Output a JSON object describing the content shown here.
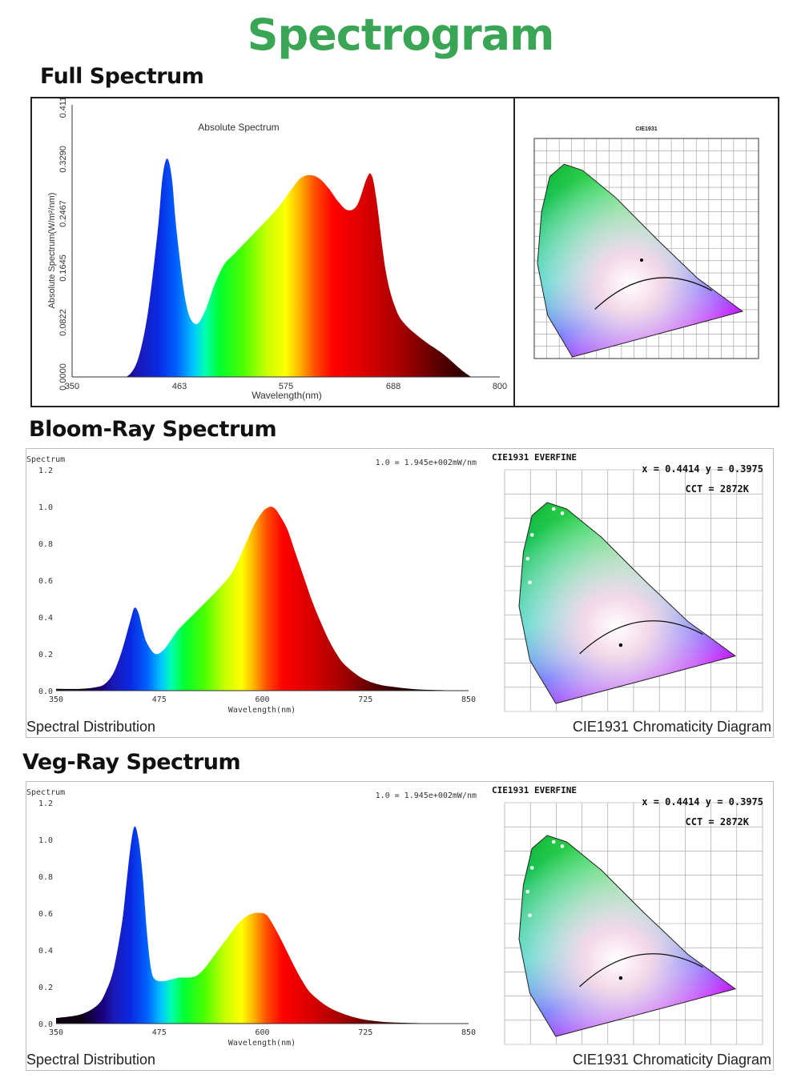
{
  "page_title": "Spectrogram",
  "sections": [
    {
      "heading": "Full Spectrum"
    },
    {
      "heading": "Bloom-Ray Spectrum",
      "left_caption": "Spectral Distribution",
      "right_caption": "CIE1931 Chromaticity Diagram"
    },
    {
      "heading": "Veg-Ray Spectrum",
      "left_caption": "Spectral Distribution",
      "right_caption": "CIE1931 Chromaticity Diagram"
    }
  ],
  "cie_labels": {
    "header": "CIE1931   EVERFINE",
    "xy": "x = 0.4414 y = 0.3975",
    "cct": "CCT = 2872K",
    "full_title": "CIE1931"
  },
  "chart_data": [
    {
      "type": "area",
      "title": "Absolute Spectrum",
      "xlabel": "Wavelength(nm)",
      "ylabel": "Absolute Spectrum(W/m²/nm)",
      "xlim": [
        350,
        800
      ],
      "ylim": [
        0,
        0.4112
      ],
      "xticks": [
        "350",
        "463",
        "575",
        "688",
        "800"
      ],
      "yticks": [
        "0.0000",
        "0.0822",
        "0.1645",
        "0.2467",
        "0.3290",
        "0.4112"
      ],
      "x": [
        350,
        400,
        410,
        420,
        430,
        440,
        445,
        450,
        455,
        460,
        470,
        480,
        490,
        500,
        510,
        520,
        530,
        540,
        550,
        560,
        570,
        580,
        590,
        600,
        610,
        620,
        630,
        640,
        650,
        660,
        665,
        670,
        680,
        690,
        700,
        720,
        740,
        760,
        770
      ],
      "values": [
        0,
        0,
        0.003,
        0.03,
        0.1,
        0.22,
        0.3,
        0.33,
        0.3,
        0.22,
        0.11,
        0.08,
        0.1,
        0.14,
        0.17,
        0.185,
        0.2,
        0.215,
        0.23,
        0.245,
        0.262,
        0.282,
        0.3,
        0.305,
        0.3,
        0.285,
        0.265,
        0.252,
        0.26,
        0.3,
        0.305,
        0.27,
        0.16,
        0.105,
        0.08,
        0.055,
        0.035,
        0.01,
        0
      ]
    },
    {
      "type": "area",
      "title": "Bloom-Ray Spectral Distribution",
      "scale_note": "1.0 = 1.945e+002mW/nm",
      "ylabel": "Spectrum",
      "xlabel": "Wavelength(nm)",
      "xlim": [
        350,
        850
      ],
      "ylim": [
        0,
        1.2
      ],
      "xticks": [
        "350",
        "475",
        "600",
        "725",
        "850"
      ],
      "yticks": [
        "0.0",
        "0.2",
        "0.4",
        "0.6",
        "0.8",
        "1.0",
        "1.2"
      ],
      "x": [
        350,
        380,
        400,
        410,
        420,
        430,
        440,
        445,
        450,
        455,
        460,
        470,
        480,
        490,
        500,
        520,
        540,
        560,
        570,
        580,
        590,
        600,
        605,
        610,
        615,
        620,
        630,
        640,
        650,
        660,
        670,
        680,
        690,
        700,
        720,
        740,
        760,
        780,
        800,
        850
      ],
      "values": [
        0.01,
        0.01,
        0.02,
        0.04,
        0.1,
        0.22,
        0.38,
        0.45,
        0.42,
        0.33,
        0.26,
        0.2,
        0.22,
        0.28,
        0.34,
        0.43,
        0.52,
        0.62,
        0.7,
        0.8,
        0.9,
        0.97,
        0.99,
        1.0,
        0.99,
        0.96,
        0.88,
        0.75,
        0.62,
        0.49,
        0.38,
        0.28,
        0.2,
        0.14,
        0.07,
        0.035,
        0.02,
        0.01,
        0.005,
        0
      ]
    },
    {
      "type": "area",
      "title": "Veg-Ray Spectral Distribution",
      "scale_note": "1.0 = 1.945e+002mW/nm",
      "ylabel": "Spectrum",
      "xlabel": "Wavelength(nm)",
      "xlim": [
        350,
        850
      ],
      "ylim": [
        0,
        1.2
      ],
      "xticks": [
        "350",
        "475",
        "600",
        "725",
        "850"
      ],
      "yticks": [
        "0.0",
        "0.2",
        "0.4",
        "0.6",
        "0.8",
        "1.0",
        "1.2"
      ],
      "x": [
        350,
        380,
        400,
        410,
        420,
        430,
        435,
        440,
        445,
        450,
        455,
        460,
        465,
        470,
        480,
        490,
        500,
        510,
        520,
        530,
        540,
        550,
        560,
        570,
        580,
        590,
        600,
        605,
        610,
        620,
        630,
        640,
        650,
        660,
        680,
        700,
        720,
        740,
        760,
        800,
        850
      ],
      "values": [
        0.03,
        0.05,
        0.1,
        0.17,
        0.3,
        0.55,
        0.75,
        0.95,
        1.07,
        1.0,
        0.8,
        0.5,
        0.3,
        0.24,
        0.23,
        0.24,
        0.25,
        0.25,
        0.26,
        0.3,
        0.36,
        0.42,
        0.48,
        0.54,
        0.58,
        0.6,
        0.6,
        0.59,
        0.56,
        0.48,
        0.39,
        0.3,
        0.22,
        0.16,
        0.09,
        0.05,
        0.025,
        0.012,
        0.006,
        0.002,
        0
      ]
    }
  ]
}
